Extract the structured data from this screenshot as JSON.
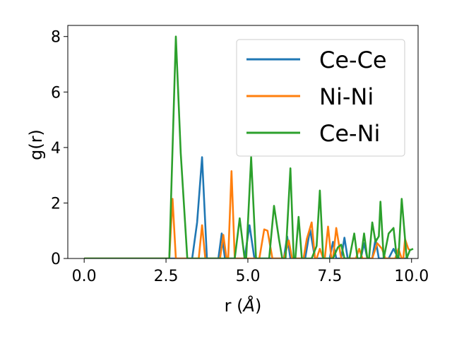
{
  "chart_data": {
    "type": "line",
    "xlabel": "r (",
    "xlabel_unit": "Å",
    "xlabel_close": ")",
    "ylabel": "g(r)",
    "xlim": [
      -0.5,
      10.2
    ],
    "ylim": [
      0,
      8.4
    ],
    "x_ticks": [
      0.0,
      2.5,
      5.0,
      7.5,
      10.0
    ],
    "x_tick_labels": [
      "0.0",
      "2.5",
      "5.0",
      "7.5",
      "10.0"
    ],
    "y_ticks": [
      0,
      2,
      4,
      6,
      8
    ],
    "y_tick_labels": [
      "0",
      "2",
      "4",
      "6",
      "8"
    ],
    "grid": false,
    "legend_position": "top-right",
    "series": [
      {
        "name": "Ce-Ce",
        "color": "#1f77b4",
        "points": [
          [
            0,
            0
          ],
          [
            3.3,
            0
          ],
          [
            3.45,
            1.3
          ],
          [
            3.6,
            3.65
          ],
          [
            3.75,
            0
          ],
          [
            4.1,
            0
          ],
          [
            4.2,
            0.9
          ],
          [
            4.3,
            0
          ],
          [
            4.9,
            0
          ],
          [
            5.05,
            1.2
          ],
          [
            5.2,
            0
          ],
          [
            6.1,
            0
          ],
          [
            6.2,
            0.8
          ],
          [
            6.3,
            0
          ],
          [
            6.75,
            0
          ],
          [
            6.9,
            1.05
          ],
          [
            7.05,
            0
          ],
          [
            7.5,
            0
          ],
          [
            7.6,
            0.6
          ],
          [
            7.7,
            0
          ],
          [
            7.85,
            0
          ],
          [
            7.95,
            0.75
          ],
          [
            8.05,
            0
          ],
          [
            8.45,
            0
          ],
          [
            8.55,
            0.55
          ],
          [
            8.65,
            0
          ],
          [
            8.8,
            0
          ],
          [
            8.9,
            0.7
          ],
          [
            9.0,
            0
          ],
          [
            9.3,
            0
          ],
          [
            9.45,
            0.35
          ],
          [
            9.6,
            0
          ],
          [
            9.9,
            0
          ]
        ]
      },
      {
        "name": "Ni-Ni",
        "color": "#ff7f0e",
        "points": [
          [
            0,
            0
          ],
          [
            2.6,
            0
          ],
          [
            2.7,
            2.15
          ],
          [
            2.8,
            0
          ],
          [
            3.5,
            0
          ],
          [
            3.6,
            1.2
          ],
          [
            3.7,
            0
          ],
          [
            4.15,
            0
          ],
          [
            4.25,
            0.85
          ],
          [
            4.35,
            0
          ],
          [
            4.4,
            0
          ],
          [
            4.5,
            3.15
          ],
          [
            4.6,
            0
          ],
          [
            5.35,
            0
          ],
          [
            5.5,
            1.05
          ],
          [
            5.6,
            1.0
          ],
          [
            5.75,
            0
          ],
          [
            6.1,
            0
          ],
          [
            6.25,
            0.65
          ],
          [
            6.35,
            0
          ],
          [
            6.7,
            0
          ],
          [
            6.8,
            0.7
          ],
          [
            6.95,
            1.3
          ],
          [
            7.05,
            0
          ],
          [
            7.1,
            0
          ],
          [
            7.2,
            0.35
          ],
          [
            7.3,
            0
          ],
          [
            7.35,
            0
          ],
          [
            7.45,
            1.15
          ],
          [
            7.55,
            0
          ],
          [
            7.6,
            0
          ],
          [
            7.7,
            1.1
          ],
          [
            7.85,
            0
          ],
          [
            8.3,
            0
          ],
          [
            8.4,
            0.35
          ],
          [
            8.5,
            0
          ],
          [
            8.8,
            0
          ],
          [
            8.95,
            0.55
          ],
          [
            9.1,
            0.35
          ],
          [
            9.2,
            0
          ],
          [
            9.5,
            0
          ],
          [
            9.6,
            0.35
          ],
          [
            9.7,
            0
          ],
          [
            9.75,
            0
          ],
          [
            9.8,
            0.7
          ],
          [
            9.9,
            0.35
          ],
          [
            9.95,
            0.3
          ]
        ]
      },
      {
        "name": "Ce-Ni",
        "color": "#2ca02c",
        "points": [
          [
            0,
            0
          ],
          [
            2.6,
            0
          ],
          [
            2.8,
            8.0
          ],
          [
            2.95,
            3.8
          ],
          [
            3.15,
            0
          ],
          [
            4.6,
            0
          ],
          [
            4.75,
            1.45
          ],
          [
            4.9,
            0
          ],
          [
            4.95,
            0
          ],
          [
            5.1,
            3.65
          ],
          [
            5.25,
            0
          ],
          [
            5.65,
            0
          ],
          [
            5.8,
            1.9
          ],
          [
            5.95,
            0.7
          ],
          [
            6.05,
            0
          ],
          [
            6.15,
            0
          ],
          [
            6.3,
            3.25
          ],
          [
            6.4,
            0
          ],
          [
            6.45,
            0
          ],
          [
            6.55,
            1.5
          ],
          [
            6.65,
            0
          ],
          [
            6.95,
            0
          ],
          [
            7.1,
            0.45
          ],
          [
            7.2,
            2.45
          ],
          [
            7.3,
            0
          ],
          [
            7.6,
            0
          ],
          [
            7.75,
            0.4
          ],
          [
            7.85,
            0.5
          ],
          [
            7.95,
            0
          ],
          [
            8.1,
            0
          ],
          [
            8.25,
            0.9
          ],
          [
            8.35,
            0
          ],
          [
            8.45,
            0
          ],
          [
            8.55,
            0.9
          ],
          [
            8.65,
            0
          ],
          [
            8.7,
            0
          ],
          [
            8.8,
            1.3
          ],
          [
            8.9,
            0.6
          ],
          [
            9.0,
            0.8
          ],
          [
            9.05,
            2.05
          ],
          [
            9.15,
            0
          ],
          [
            9.3,
            0.9
          ],
          [
            9.45,
            1.1
          ],
          [
            9.55,
            0
          ],
          [
            9.6,
            0
          ],
          [
            9.7,
            2.15
          ],
          [
            9.85,
            0
          ],
          [
            9.95,
            0.3
          ],
          [
            10.05,
            0.35
          ]
        ]
      }
    ]
  }
}
